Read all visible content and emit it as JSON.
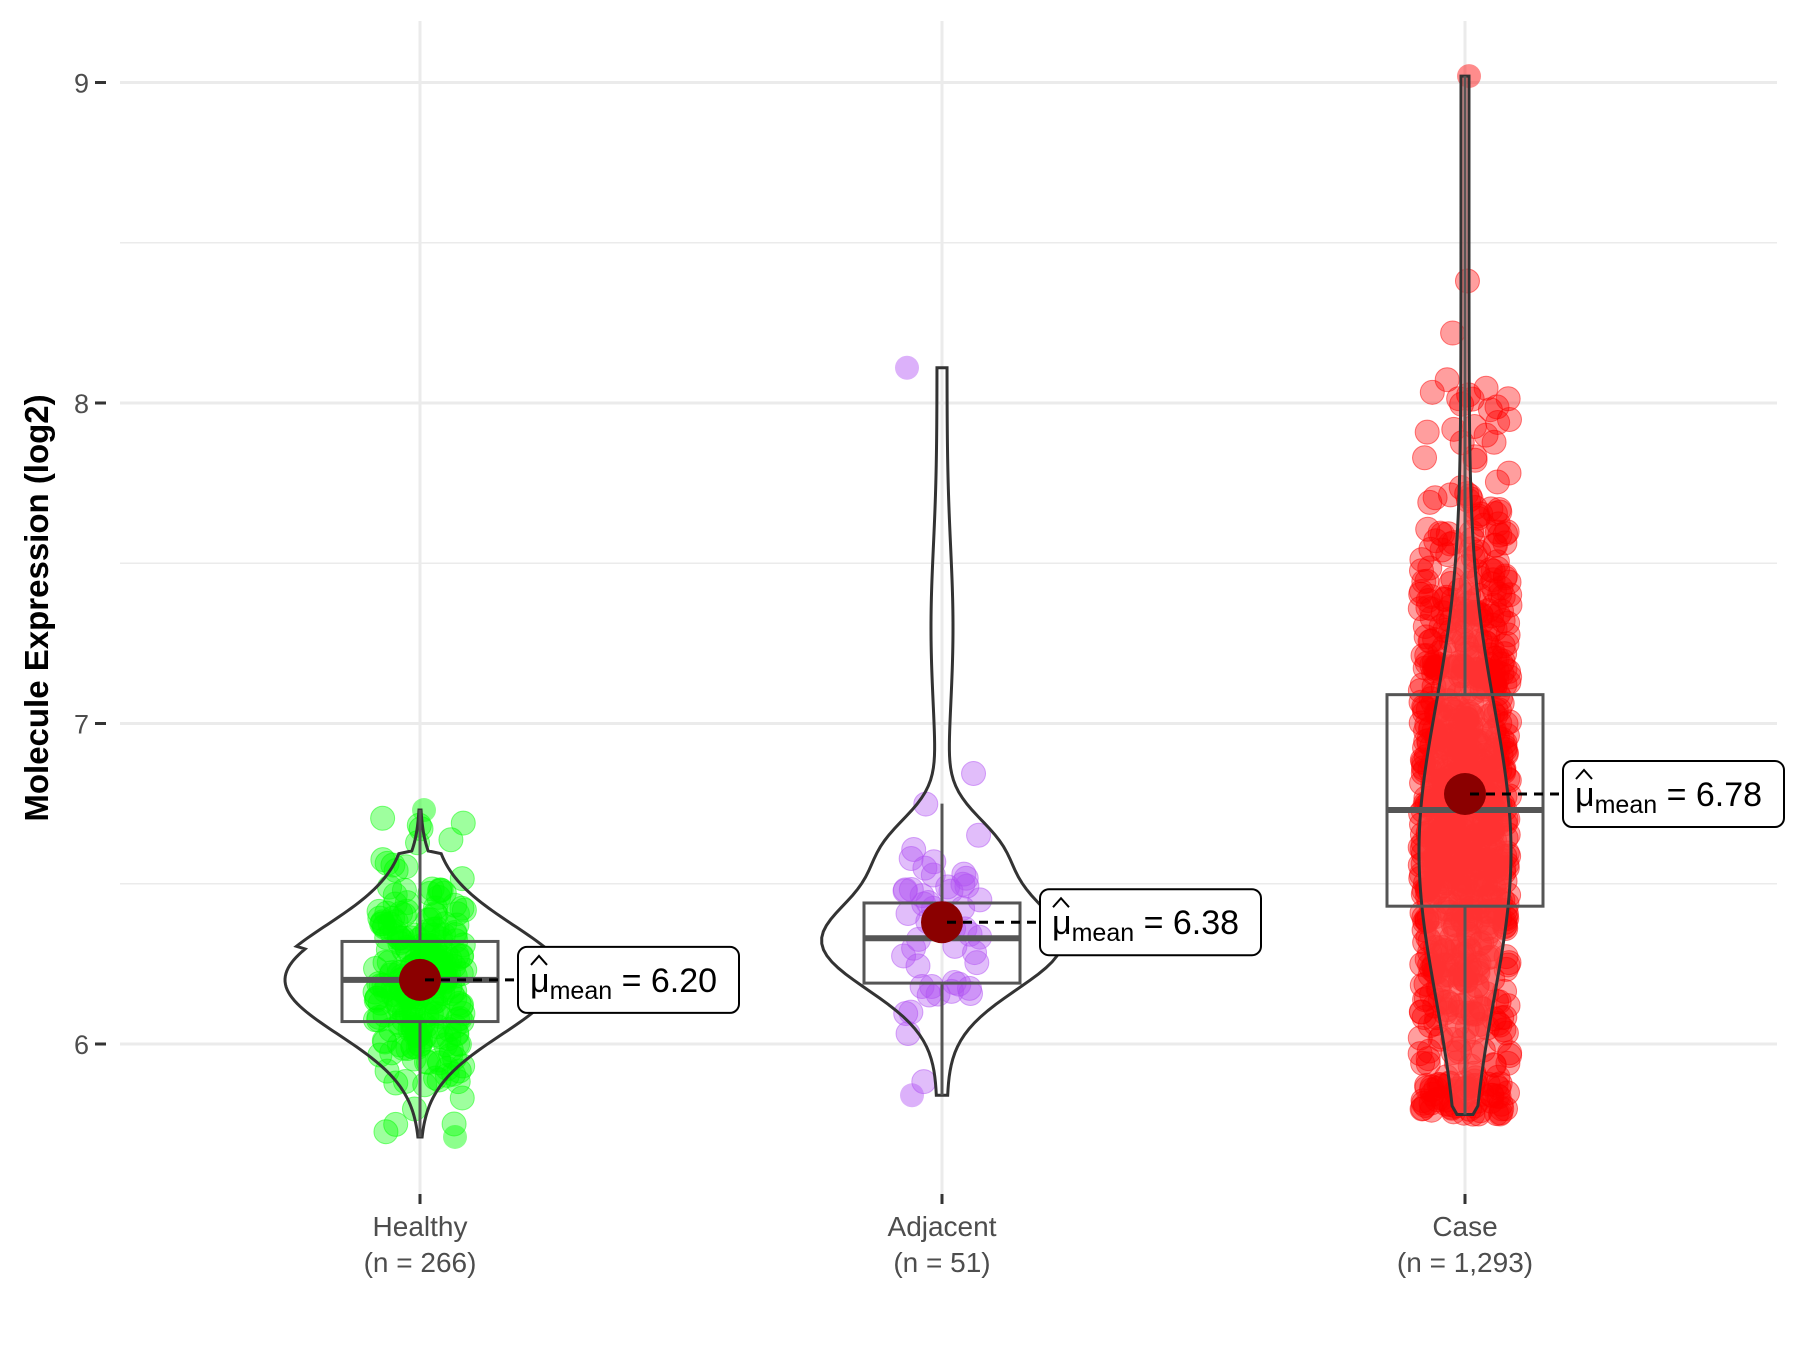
{
  "chart_data": {
    "type": "violin-box",
    "title": "",
    "xlabel": "",
    "ylabel": "Molecule Expression (log2)",
    "ylim": [
      5.52,
      9.2
    ],
    "yticks": [
      "6",
      "7",
      "8",
      "9"
    ],
    "ytick_values": [
      6,
      7,
      8,
      9
    ],
    "grid": true,
    "groups": [
      {
        "name": "Healthy",
        "n_label": "(n = 266)",
        "n": 266,
        "color": "#00ff00",
        "mean": 6.2,
        "median": 6.2,
        "q1": 6.07,
        "q3": 6.32,
        "whisker_low": 5.71,
        "whisker_high": 6.73,
        "min": 5.71,
        "max": 6.73,
        "mean_label": "6.20"
      },
      {
        "name": "Adjacent",
        "n_label": "(n = 51)",
        "n": 51,
        "color": "#b152f3",
        "mean": 6.38,
        "median": 6.33,
        "q1": 6.19,
        "q3": 6.44,
        "whisker_low": 5.84,
        "whisker_high": 6.75,
        "min": 5.84,
        "max": 8.11,
        "mean_label": "6.38"
      },
      {
        "name": "Case",
        "n_label": "(n = 1,293)",
        "n": 1293,
        "color": "#ff0000",
        "mean": 6.78,
        "median": 6.73,
        "q1": 6.43,
        "q3": 7.09,
        "whisker_low": 5.78,
        "whisker_high": 9.02,
        "min": 5.78,
        "max": 9.02,
        "mean_label": "6.78"
      }
    ],
    "annotation_symbol": "μ",
    "annotation_subscript": "mean",
    "annotation_equals": "=",
    "mean_point_color": "#8b0000"
  }
}
